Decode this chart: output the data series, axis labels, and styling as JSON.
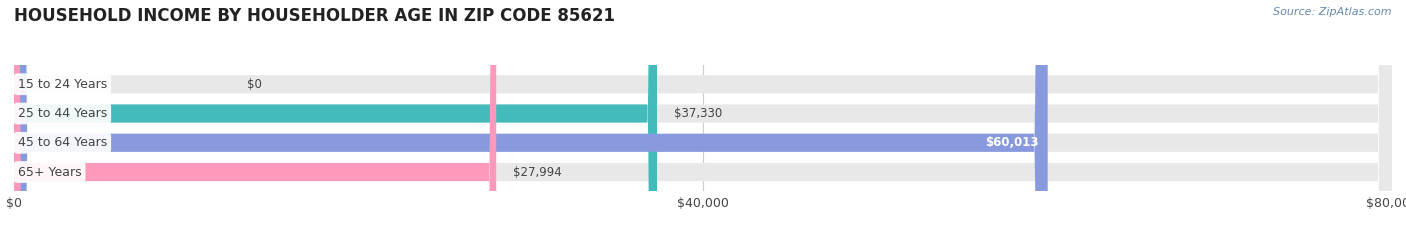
{
  "title": "HOUSEHOLD INCOME BY HOUSEHOLDER AGE IN ZIP CODE 85621",
  "source": "Source: ZipAtlas.com",
  "categories": [
    "15 to 24 Years",
    "25 to 44 Years",
    "45 to 64 Years",
    "65+ Years"
  ],
  "values": [
    0,
    37330,
    60013,
    27994
  ],
  "bar_colors": [
    "#cc99cc",
    "#44bbbb",
    "#8899dd",
    "#ff99bb"
  ],
  "bar_bg_color": "#e8e8e8",
  "xlim": [
    0,
    80000
  ],
  "xticks": [
    0,
    40000,
    80000
  ],
  "xtick_labels": [
    "$0",
    "$40,000",
    "$80,000"
  ],
  "background_color": "#ffffff",
  "title_fontsize": 12,
  "label_fontsize": 9,
  "value_fontsize": 8.5,
  "bar_height": 0.62,
  "label_color": "#444444",
  "source_color": "#6688aa",
  "grid_color": "#cccccc",
  "label_bg_color": "#ffffff"
}
